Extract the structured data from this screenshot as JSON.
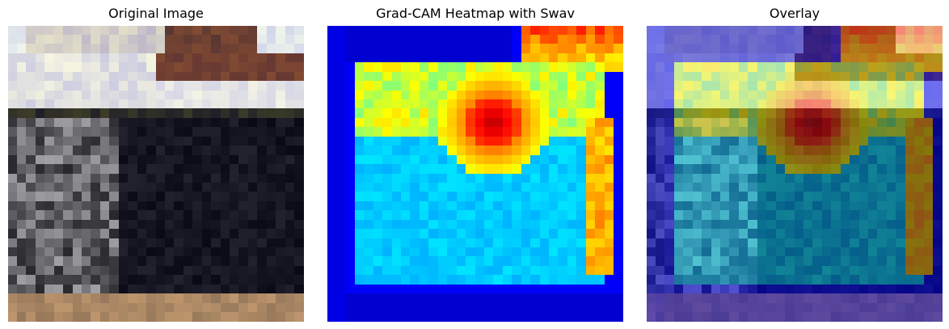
{
  "panels": [
    {
      "title": "Original Image"
    },
    {
      "title": "Grad-CAM Heatmap with Swav"
    },
    {
      "title": "Overlay"
    }
  ]
}
